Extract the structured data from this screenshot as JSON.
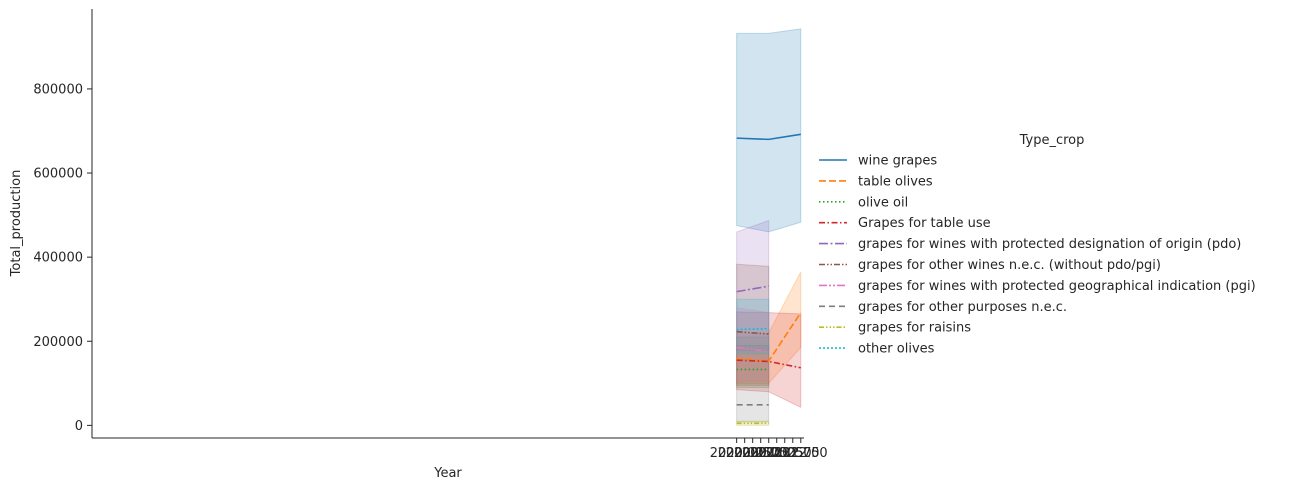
{
  "chart_data": {
    "type": "line",
    "xlabel": "Year",
    "ylabel": "Total_production",
    "xlim": [
      1999.9,
      2022.1
    ],
    "ylim": [
      -30000,
      990000
    ],
    "xticks": [
      2020.0,
      2020.25,
      2020.5,
      2020.75,
      2021.0,
      2021.25,
      2021.5,
      2021.75,
      2022.0
    ],
    "xtick_labels": [
      "2020.00",
      "2020.25",
      "2020.50",
      "2020.75",
      "2021.00",
      "2021.25",
      "2021.50",
      "2021.75",
      "2022.00"
    ],
    "yticks": [
      0,
      200000,
      400000,
      600000,
      800000
    ],
    "ytick_labels": [
      "0",
      "200000",
      "400000",
      "600000",
      "800000"
    ],
    "grid": false,
    "legend": {
      "title": "Type_crop",
      "placement": "right outside"
    },
    "series": [
      {
        "name": "wine grapes",
        "color": "#1f77b4",
        "dash": "solid",
        "x": [
          2020,
          2021,
          2022
        ],
        "values": [
          683000,
          680000,
          692000
        ],
        "ci_low": [
          475000,
          460000,
          483000
        ],
        "ci_high": [
          932000,
          932000,
          943000
        ]
      },
      {
        "name": "table olives",
        "color": "#ff7f0e",
        "dash": "dashed",
        "x": [
          2020,
          2021,
          2022
        ],
        "values": [
          158000,
          153000,
          268000
        ],
        "ci_low": [
          100000,
          100000,
          185000
        ],
        "ci_high": [
          220000,
          220000,
          365000
        ]
      },
      {
        "name": "olive oil",
        "color": "#2ca02c",
        "dash": "dotted",
        "x": [
          2020,
          2021
        ],
        "values": [
          133000,
          133000
        ],
        "ci_low": [
          90000,
          90000
        ],
        "ci_high": [
          190000,
          190000
        ]
      },
      {
        "name": "Grapes for table use",
        "color": "#d62728",
        "dash": "dashdot",
        "x": [
          2020,
          2021,
          2022
        ],
        "values": [
          155000,
          152000,
          137000
        ],
        "ci_low": [
          85000,
          80000,
          43000
        ],
        "ci_high": [
          270000,
          268000,
          265000
        ]
      },
      {
        "name": "grapes for wines with protected designation of origin (pdo)",
        "color": "#9467bd",
        "dash": "longdashdot",
        "x": [
          2020,
          2021
        ],
        "values": [
          318000,
          331000
        ],
        "ci_low": [
          178000,
          178000
        ],
        "ci_high": [
          460000,
          487000
        ]
      },
      {
        "name": "grapes for other wines n.e.c. (without pdo/pgi)",
        "color": "#8c564b",
        "dash": "dashdotdot",
        "x": [
          2020,
          2021
        ],
        "values": [
          223000,
          217000
        ],
        "ci_low": [
          95000,
          95000
        ],
        "ci_high": [
          383000,
          378000
        ]
      },
      {
        "name": "grapes for wines with protected geographical indication (pgi)",
        "color": "#e377c2",
        "dash": "longdashdotdot",
        "x": [
          2020,
          2021
        ],
        "values": [
          185000,
          176000
        ],
        "ci_low": [
          105000,
          105000
        ],
        "ci_high": [
          280000,
          268000
        ]
      },
      {
        "name": "grapes for other purposes n.e.c.",
        "color": "#7f7f7f",
        "dash": "longdash",
        "x": [
          2020,
          2021
        ],
        "values": [
          49000,
          49000
        ],
        "ci_low": [
          8000,
          8000
        ],
        "ci_high": [
          210000,
          210000
        ]
      },
      {
        "name": "grapes for raisins",
        "color": "#bcbd22",
        "dash": "dashdotdotdot",
        "x": [
          2020,
          2021
        ],
        "values": [
          5000,
          5000
        ],
        "ci_low": [
          0,
          0
        ],
        "ci_high": [
          10000,
          10000
        ]
      },
      {
        "name": "other olives",
        "color": "#17becf",
        "dash": "shortdotted",
        "x": [
          2020,
          2021
        ],
        "values": [
          228000,
          230000
        ],
        "ci_low": [
          170000,
          170000
        ],
        "ci_high": [
          300000,
          300000
        ]
      }
    ]
  }
}
